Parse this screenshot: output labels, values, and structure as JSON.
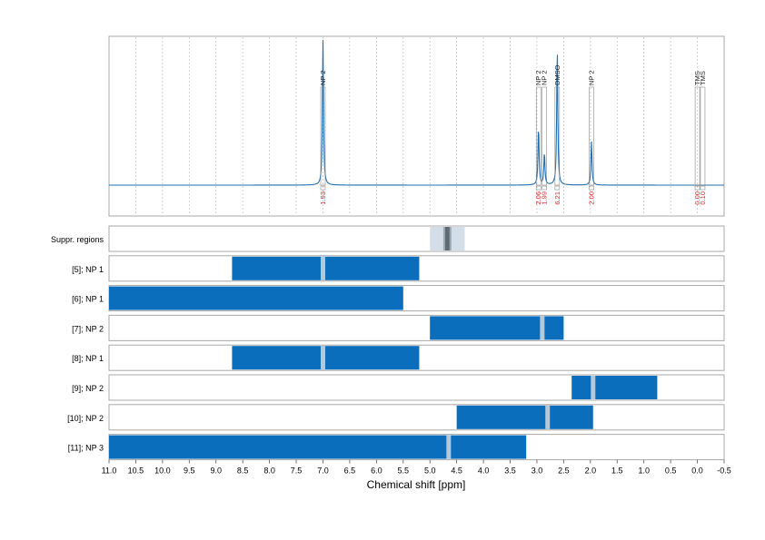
{
  "chart_data": {
    "type": "nmr-spectrum-with-region-bars",
    "xlabel": "Chemical shift [ppm]",
    "xlim": [
      11.0,
      -0.5
    ],
    "x_ticks": [
      "11.0",
      "10.5",
      "10.0",
      "9.5",
      "9.0",
      "8.5",
      "8.0",
      "7.5",
      "7.0",
      "6.5",
      "6.0",
      "5.5",
      "5.0",
      "4.5",
      "4.0",
      "3.5",
      "3.0",
      "2.5",
      "2.0",
      "1.5",
      "1.0",
      "0.5",
      "0.0",
      "-0.5"
    ],
    "grid": true,
    "spectrum": {
      "color": "#1f6fb0",
      "peaks": [
        {
          "ppm": 7.0,
          "height": 1.0,
          "label": "NP 2",
          "integral": "1.93"
        },
        {
          "ppm": 2.97,
          "height": 0.4,
          "label": "NP 2",
          "integral": "2.06"
        },
        {
          "ppm": 2.86,
          "height": 0.22,
          "label": "NP 2",
          "integral": "1.99"
        },
        {
          "ppm": 2.62,
          "height": 0.95,
          "label": "DMSO",
          "integral": "6.21"
        },
        {
          "ppm": 1.98,
          "height": 0.3,
          "label": "NP 2",
          "integral": "2.00"
        },
        {
          "ppm": 0.0,
          "height": 0.0,
          "label": "TMS",
          "integral": "0.00"
        },
        {
          "ppm": -0.1,
          "height": 0.0,
          "label": "TMS",
          "integral": "0.10"
        }
      ]
    },
    "suppressed_regions": {
      "label": "Suppr. regions",
      "outer": [
        5.0,
        4.35
      ],
      "inner": [
        4.75,
        4.6
      ]
    },
    "rows": [
      {
        "label": "[5]; NP 1",
        "start": 8.7,
        "end": 5.2,
        "markers": [
          7.0
        ]
      },
      {
        "label": "[6]; NP 1",
        "start": 11.0,
        "end": 5.5,
        "markers": []
      },
      {
        "label": "[7]; NP 2",
        "start": 5.0,
        "end": 2.5,
        "markers": [
          2.9
        ]
      },
      {
        "label": "[8]; NP 1",
        "start": 8.7,
        "end": 5.2,
        "markers": [
          7.0
        ]
      },
      {
        "label": "[9]; NP 2",
        "start": 2.35,
        "end": 0.75,
        "markers": [
          1.95
        ]
      },
      {
        "label": "[10]; NP 2",
        "start": 4.5,
        "end": 1.95,
        "markers": [
          2.8
        ]
      },
      {
        "label": "[11]; NP 3",
        "start": 11.0,
        "end": 3.2,
        "markers": [
          4.65
        ]
      }
    ],
    "colors": {
      "bar": "#0a6ebd",
      "marker": "#b5c9d8",
      "integral_text": "#e02020",
      "grid": "#bdbdbd",
      "frame": "#a9a9a9",
      "suppr_outer": "#d4dee8",
      "suppr_inner_mid": "#9aa8b3",
      "suppr_inner_dark": "#5f6b74"
    }
  }
}
